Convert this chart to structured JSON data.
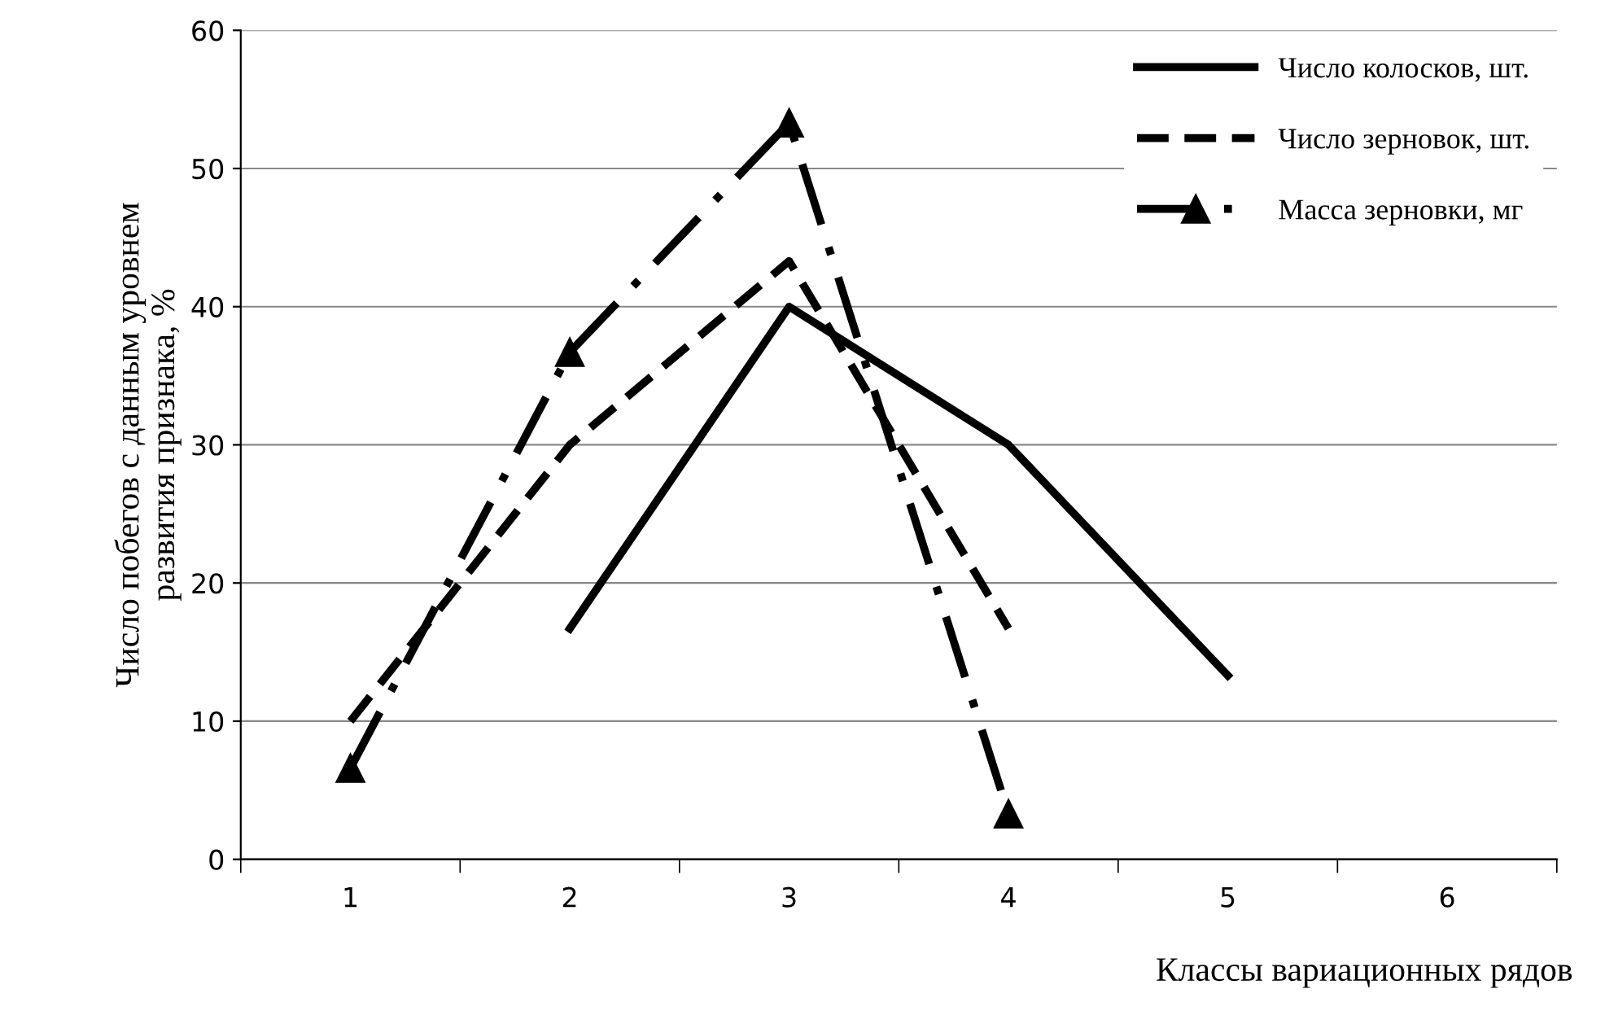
{
  "chart_data": {
    "type": "line",
    "xlabel": "Классы вариационных рядов",
    "ylabel": "Число побегов с данным уровнем\nразвития признака, %",
    "categories": [
      "1",
      "2",
      "3",
      "4",
      "5",
      "6"
    ],
    "series": [
      {
        "name": "Число колосков, шт.",
        "color": "#000000",
        "line_style": "solid",
        "marker": "none",
        "values": [
          null,
          16.7,
          40,
          30,
          13.3,
          null
        ]
      },
      {
        "name": "Число зерновок, шт.",
        "color": "#000000",
        "line_style": "dashed",
        "marker": "none",
        "values": [
          10,
          30,
          43.3,
          16.7,
          null,
          null
        ]
      },
      {
        "name": "Масса зерновки, мг",
        "color": "#000000",
        "line_style": "dashdot",
        "marker": "triangle",
        "values": [
          6.6,
          36.7,
          53.3,
          3.3,
          null,
          null
        ]
      }
    ],
    "ylim": [
      0,
      60
    ],
    "yticks": [
      0,
      10,
      20,
      30,
      40,
      50,
      60
    ],
    "grid": "y",
    "legend": "top right"
  }
}
